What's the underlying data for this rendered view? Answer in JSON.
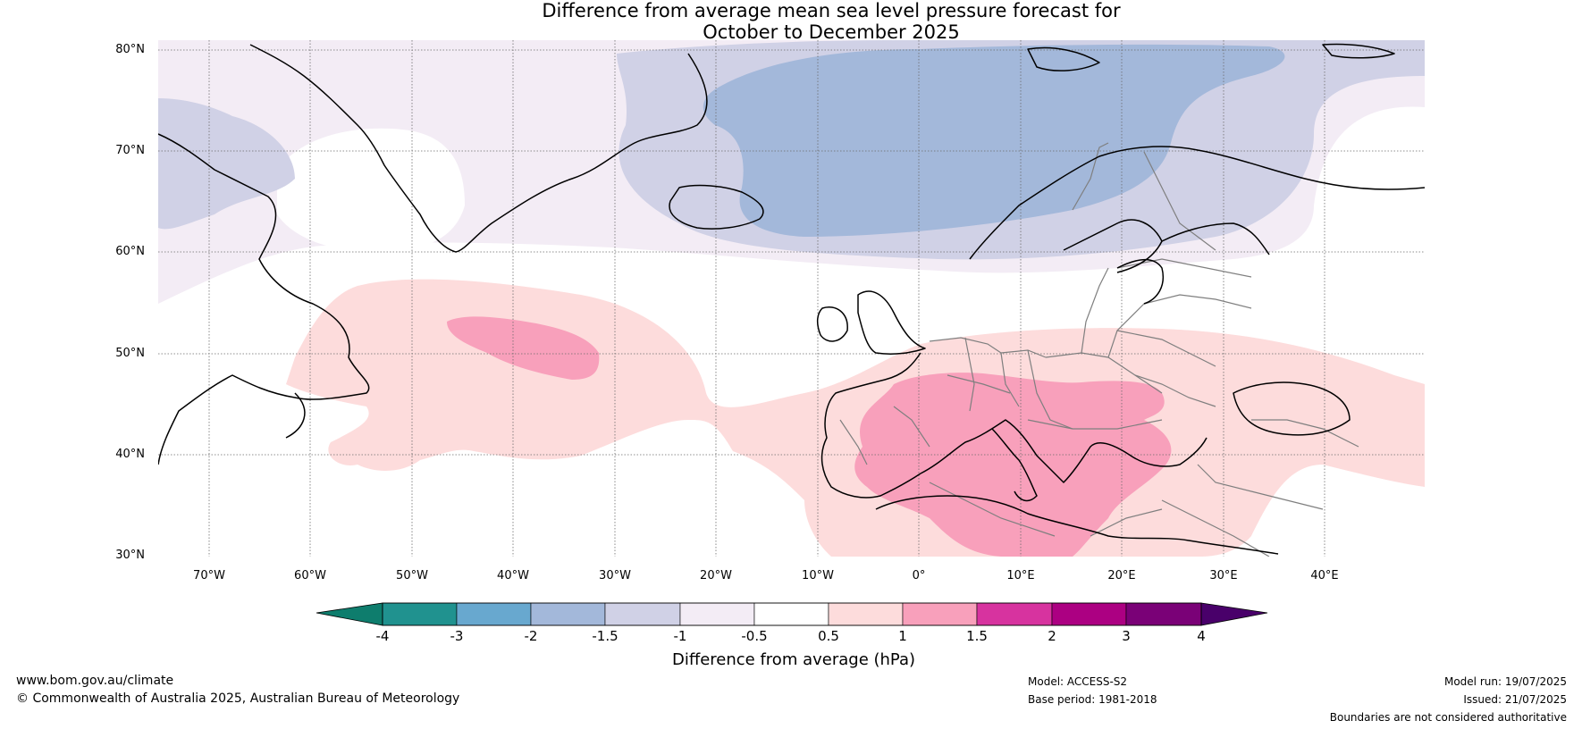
{
  "title": {
    "line1": "Difference from average mean sea level pressure forecast for",
    "line2": "October to December 2025"
  },
  "map": {
    "lat_labels": [
      "80°N",
      "70°N",
      "60°N",
      "50°N",
      "40°N",
      "30°N"
    ],
    "lon_labels": [
      "70°W",
      "60°W",
      "50°W",
      "40°W",
      "30°W",
      "20°W",
      "10°W",
      "0°",
      "10°E",
      "20°E",
      "30°E",
      "40°E"
    ],
    "extent": {
      "lon": [
        -75,
        50
      ],
      "lat": [
        30,
        81
      ]
    }
  },
  "colorbar": {
    "ticks": [
      "-4",
      "-3",
      "-2",
      "-1.5",
      "-1",
      "-0.5",
      "0.5",
      "1",
      "1.5",
      "2",
      "3",
      "4"
    ],
    "colors": [
      "#0e7d6d",
      "#20928f",
      "#68a8cf",
      "#a3b8da",
      "#d0d1e6",
      "#f3ecf5",
      "#ffffff",
      "#fddcdc",
      "#f8a0bb",
      "#d7339f",
      "#ac0082",
      "#7a0177",
      "#49006a"
    ],
    "label": "Difference from average (hPa)"
  },
  "footer": {
    "url": "www.bom.gov.au/climate",
    "copyright": "© Commonwealth of Australia 2025, Australian Bureau of Meteorology",
    "model": "Model: ACCESS-S2",
    "base_period": "Base period: 1981-2018",
    "model_run": "Model run: 19/07/2025",
    "issued": "Issued: 21/07/2025",
    "disclaimer": "Boundaries are not considered authoritative"
  }
}
